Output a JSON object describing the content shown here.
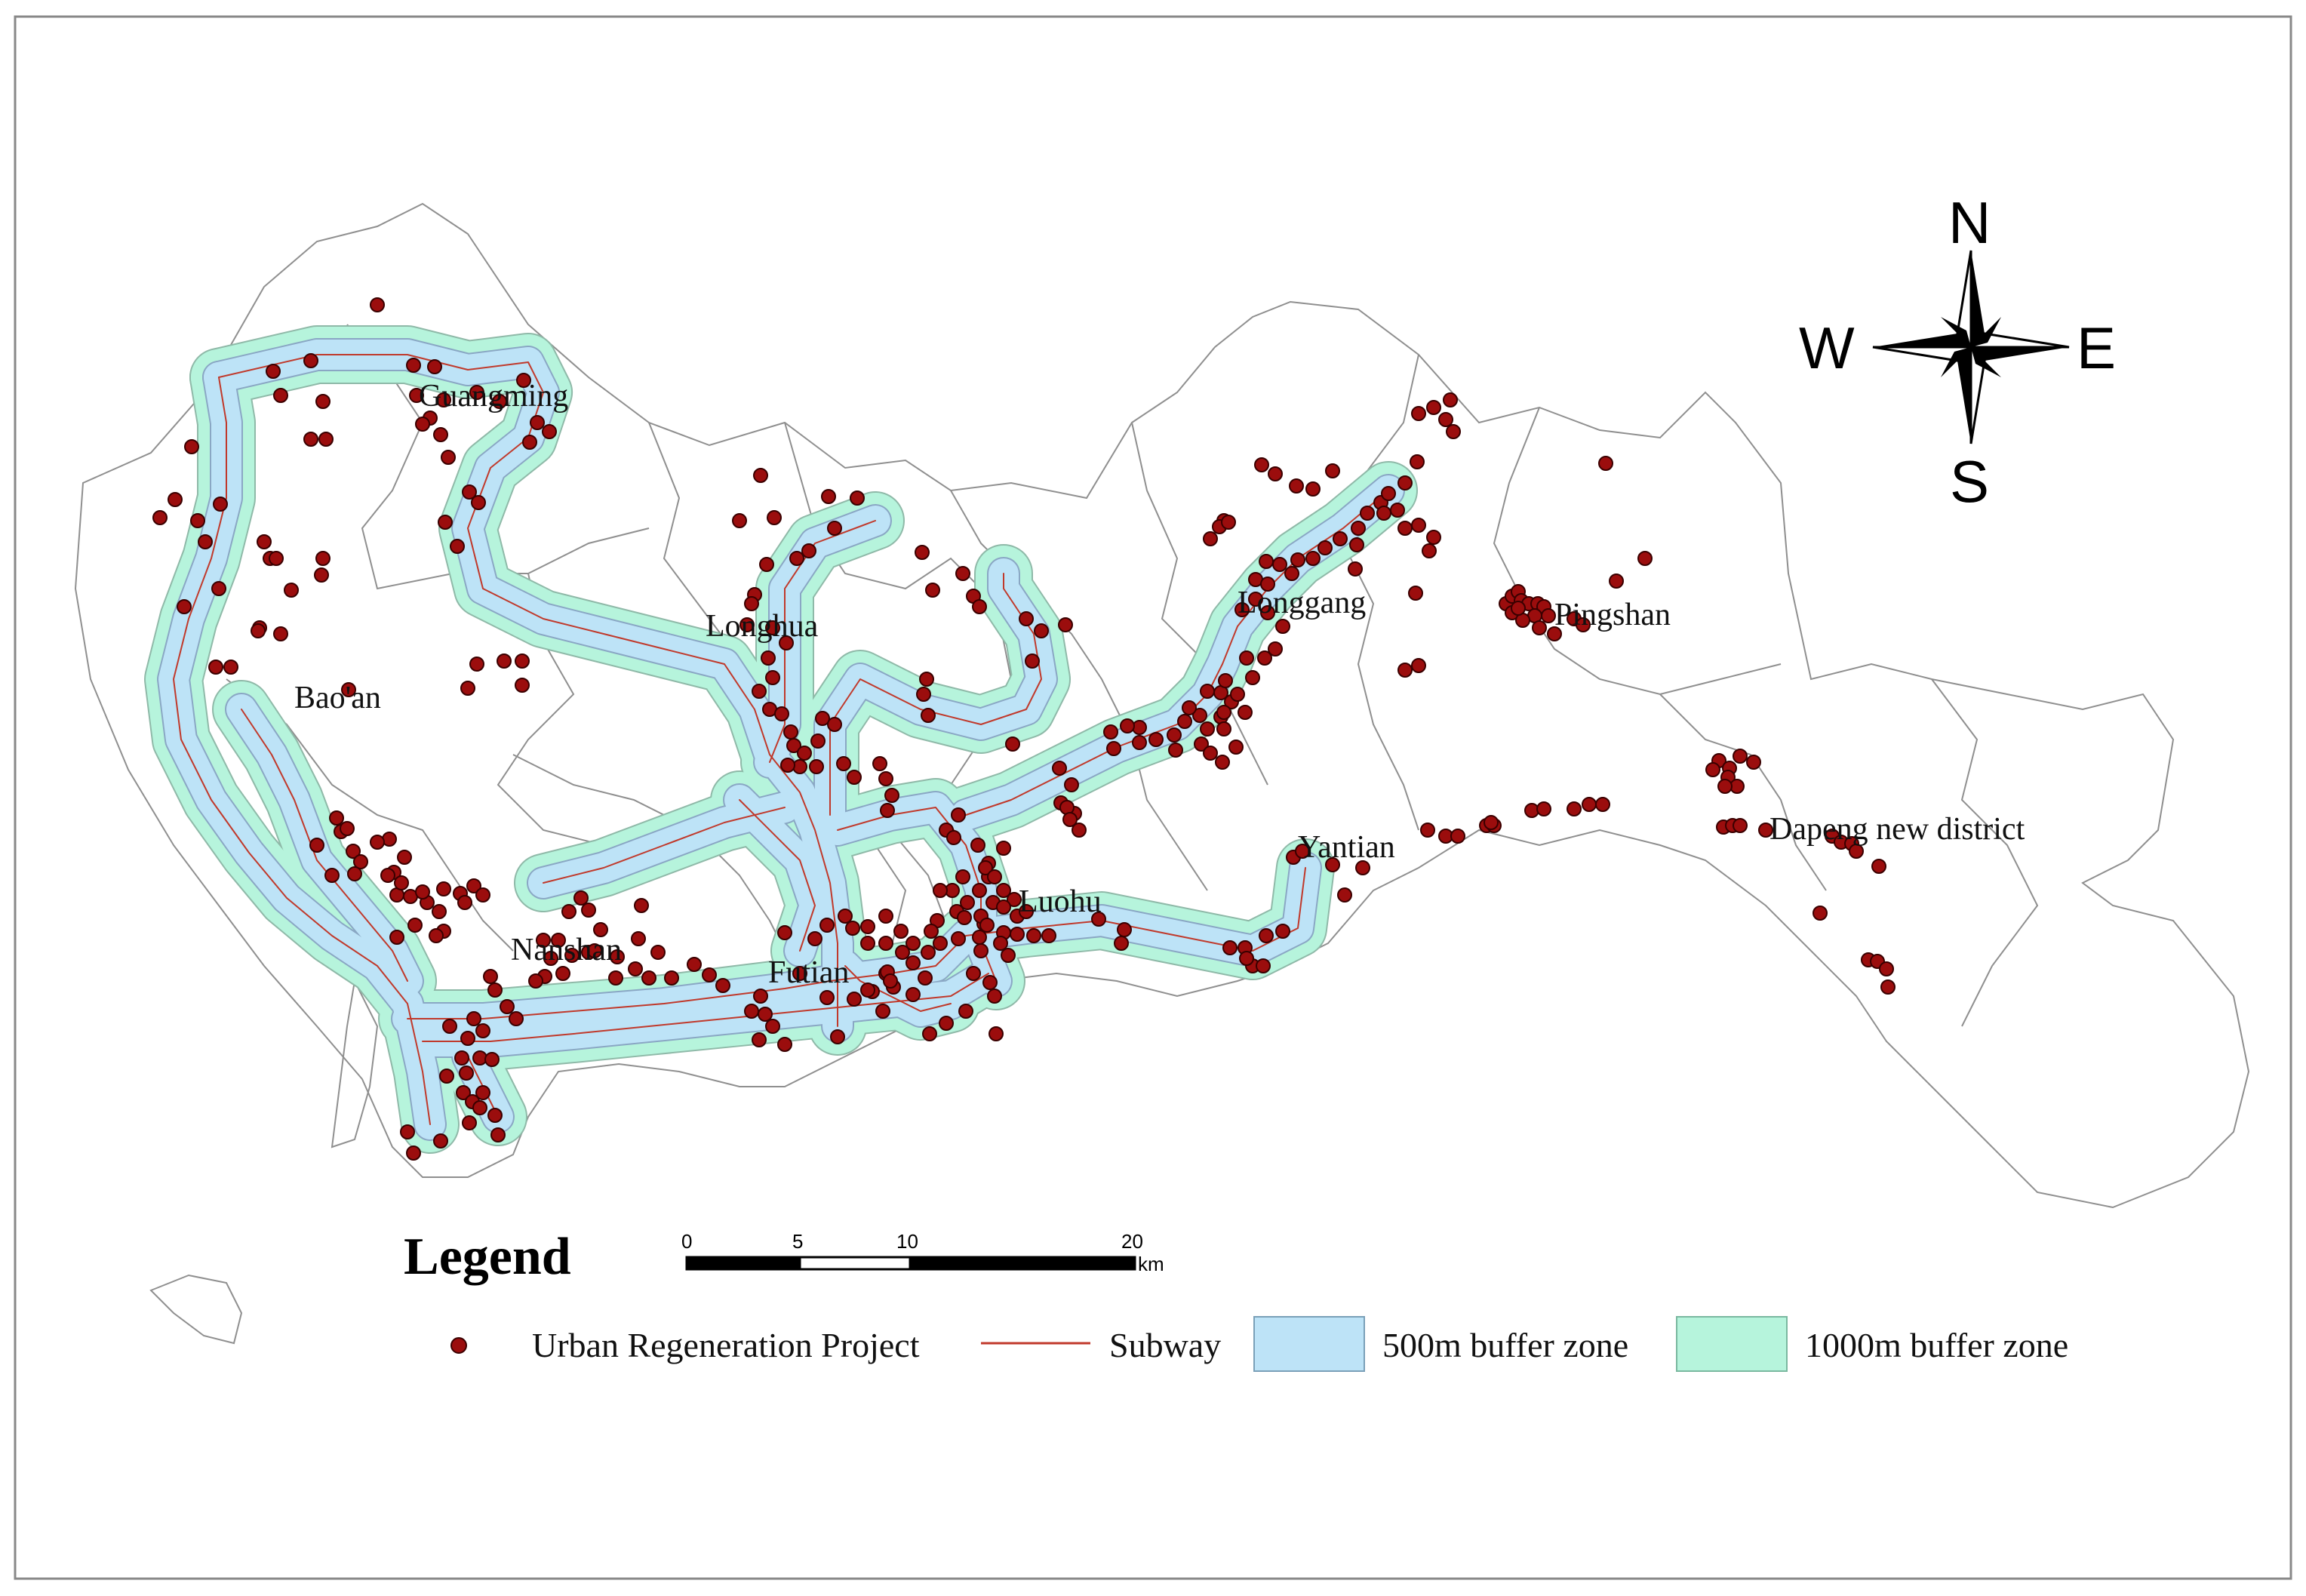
{
  "districts": [
    {
      "id": "guangming",
      "name": "Guangming"
    },
    {
      "id": "baoan",
      "name": "Bao'an"
    },
    {
      "id": "longhua",
      "name": "Longhua"
    },
    {
      "id": "longgang",
      "name": "Longgang"
    },
    {
      "id": "pingshan",
      "name": "Pingshan"
    },
    {
      "id": "yantian",
      "name": "Yantian"
    },
    {
      "id": "dapeng",
      "name": "Dapeng new district"
    },
    {
      "id": "luohu",
      "name": "Luohu"
    },
    {
      "id": "nanshan",
      "name": "Nanshan"
    },
    {
      "id": "futian",
      "name": "Futian"
    }
  ],
  "compass": {
    "north": "N",
    "south": "S",
    "east": "E",
    "west": "W"
  },
  "scale_bar": {
    "ticks": [
      "0",
      "5",
      "10",
      "20"
    ],
    "tick_values_km": [
      0,
      5,
      10,
      20
    ],
    "unit": "km"
  },
  "legend": {
    "title": "Legend",
    "items": [
      {
        "id": "project",
        "label": "Urban Regeneration Project",
        "symbol": "dot"
      },
      {
        "id": "subway",
        "label": "Subway",
        "symbol": "line"
      },
      {
        "id": "buffer500",
        "label": "500m buffer zone",
        "symbol": "box"
      },
      {
        "id": "buffer1000",
        "label": "1000m buffer zone",
        "symbol": "box"
      }
    ]
  },
  "colors": {
    "project_point": "#9b0d0d",
    "project_stroke": "#3a0000",
    "subway_line": "#c0392b",
    "buffer_500m": "#bde3f7",
    "buffer_1000m": "#b6f4dc",
    "district_boundary": "#8f8f8f"
  }
}
